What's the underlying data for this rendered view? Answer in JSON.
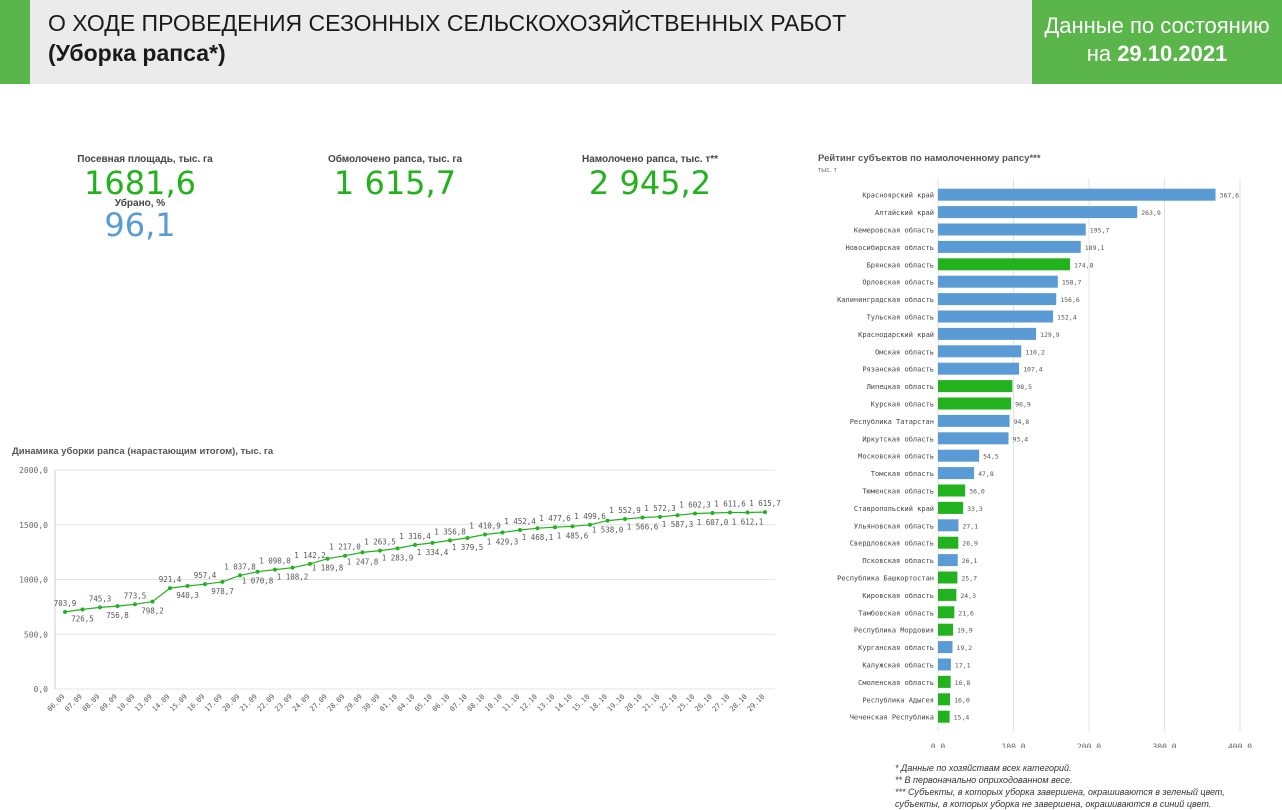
{
  "header": {
    "title_line1": "О ХОДЕ ПРОВЕДЕНИЯ СЕЗОННЫХ СЕЛЬСКОХОЗЯЙСТВЕННЫХ РАБОТ",
    "title_line2": "(Уборка рапса*)",
    "date_prefix": "Данные по состоянию",
    "date_on": "на ",
    "date_value": "29.10.2021"
  },
  "kpis": {
    "sown_label": "Посевная площадь, тыс. га",
    "sown_value": "1681,6",
    "harvested_label": "Убрано, %",
    "harvested_value": "96,1",
    "threshed_label": "Обмолочено рапса, тыс. га",
    "threshed_value": "1 615,7",
    "yield_label": "Намолочено рапса, тыс. т**",
    "yield_value": "2 945,2"
  },
  "colors": {
    "green": "#22b21e",
    "blue": "#5b9bd5",
    "accent": "#5ab54a"
  },
  "chart_data": [
    {
      "type": "line",
      "title": "Динамика уборки рапса (нарастающим итогом), тыс. га",
      "ylim": [
        0,
        2000
      ],
      "yticks": [
        "0,0",
        "500,0",
        "1000,0",
        "1500,0",
        "2000,0"
      ],
      "categories": [
        "06.09",
        "07.09",
        "08.09",
        "09.09",
        "10.09",
        "13.09",
        "14.09",
        "15.09",
        "16.09",
        "17.09",
        "20.09",
        "21.09",
        "22.09",
        "23.09",
        "24.09",
        "27.09",
        "28.09",
        "29.09",
        "30.09",
        "01.10",
        "04.10",
        "05.10",
        "06.10",
        "07.10",
        "08.10",
        "10.10",
        "11.10",
        "12.10",
        "13.10",
        "14.10",
        "15.10",
        "18.10",
        "19.10",
        "20.10",
        "21.10",
        "22.10",
        "25.10",
        "26.10",
        "27.10",
        "28.10",
        "29.10"
      ],
      "values": [
        703.9,
        726.5,
        745.3,
        756.8,
        773.5,
        798.2,
        921.4,
        940.3,
        957.4,
        978.7,
        1037.8,
        1070.8,
        1090.0,
        1108.2,
        1142.2,
        1189.8,
        1217.0,
        1247.8,
        1263.5,
        1283.9,
        1316.4,
        1334.4,
        1356.8,
        1379.5,
        1410.9,
        1429.3,
        1452.4,
        1468.1,
        1477.6,
        1485.6,
        1499.6,
        1538.0,
        1552.9,
        1566.6,
        1572.3,
        1587.3,
        1602.3,
        1607.0,
        1611.6,
        1612.1,
        1615.7
      ],
      "labels": [
        "703,9",
        "726,5",
        "745,3",
        "756,8",
        "773,5",
        "798,2",
        "921,4",
        "940,3",
        "957,4",
        "978,7",
        "1 037,8",
        "1 070,8",
        "1 090,0",
        "1 108,2",
        "1 142,2",
        "1 189,8",
        "1 217,0",
        "1 247,8",
        "1 263,5",
        "1 283,9",
        "1 316,4",
        "1 334,4",
        "1 356,8",
        "1 379,5",
        "1 410,9",
        "1 429,3",
        "1 452,4",
        "1 468,1",
        "1 477,6",
        "1 485,6",
        "1 499,6",
        "1 538,0",
        "1 552,9",
        "1 566,6",
        "1 572,3",
        "1 587,3",
        "1 602,3",
        "1 607,0",
        "1 611,6",
        "1 612,1",
        "1 615,7"
      ]
    },
    {
      "type": "bar",
      "orientation": "horizontal",
      "title": "Рейтинг субъектов по намолоченному рапсу***",
      "subtitle": "тыс. т",
      "xlim": [
        0,
        400
      ],
      "xticks": [
        "0,0",
        "100,0",
        "200,0",
        "300,0",
        "400,0"
      ],
      "categories": [
        "Красноярский край",
        "Алтайский край",
        "Кемеровская область",
        "Новосибирская область",
        "Брянская область",
        "Орловская область",
        "Калининградская область",
        "Тульская область",
        "Краснодарский край",
        "Омская область",
        "Рязанская область",
        "Липецкая область",
        "Курская область",
        "Республика Татарстан",
        "Иркутская область",
        "Московская область",
        "Томская область",
        "Тюменская область",
        "Ставропольский край",
        "Ульяновская область",
        "Свердловская область",
        "Псковская область",
        "Республика Башкортостан",
        "Кировская область",
        "Тамбовская область",
        "Республика Мордовия",
        "Курганская область",
        "Калужская область",
        "Смоленская область",
        "Республика Адыгея",
        "Чеченская Республика"
      ],
      "values": [
        367.6,
        263.9,
        195.7,
        189.1,
        174.8,
        158.7,
        156.6,
        152.4,
        129.9,
        110.2,
        107.4,
        98.5,
        96.9,
        94.8,
        93.4,
        54.5,
        47.8,
        36.0,
        33.3,
        27.1,
        26.9,
        26.1,
        25.7,
        24.3,
        21.6,
        19.9,
        19.2,
        17.1,
        16.8,
        16.0,
        15.4
      ],
      "labels": [
        "367,6",
        "263,9",
        "195,7",
        "189,1",
        "174,8",
        "158,7",
        "156,6",
        "152,4",
        "129,9",
        "110,2",
        "107,4",
        "98,5",
        "96,9",
        "94,8",
        "93,4",
        "54,5",
        "47,8",
        "36,0",
        "33,3",
        "27,1",
        "26,9",
        "26,1",
        "25,7",
        "24,3",
        "21,6",
        "19,9",
        "19,2",
        "17,1",
        "16,8",
        "16,0",
        "15,4"
      ],
      "completed": [
        false,
        false,
        false,
        false,
        true,
        false,
        false,
        false,
        false,
        false,
        false,
        true,
        true,
        false,
        false,
        false,
        false,
        true,
        true,
        false,
        true,
        false,
        true,
        true,
        true,
        true,
        false,
        false,
        true,
        true,
        true
      ]
    }
  ],
  "footnotes": [
    "* Данные по хозяйствам всех категорий.",
    "** В первоначально оприходованном весе.",
    "*** Субъекты, в которых уборка завершена, окрашиваются в зеленый цвет,",
    "субъекты, в которых уборка не завершена, окрашиваются в синий цвет."
  ]
}
